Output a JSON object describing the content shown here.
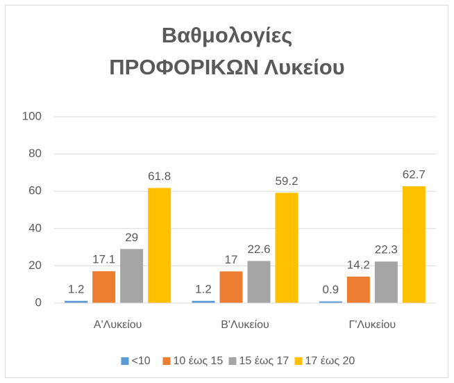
{
  "chart_data": {
    "type": "bar",
    "title": "Βαθμολογίες ΠΡΟΦΟΡΙΚΩΝ Λυκείου",
    "categories": [
      "Α'Λυκείου",
      "Β'Λυκείου",
      "Γ'Λυκείου"
    ],
    "series": [
      {
        "name": "<10",
        "color": "#5b9bd5",
        "values": [
          1.2,
          1.2,
          0.9
        ]
      },
      {
        "name": "10 έως 15",
        "color": "#ed7d31",
        "values": [
          17.1,
          17,
          14.2
        ]
      },
      {
        "name": "15 έως 17",
        "color": "#a5a5a5",
        "values": [
          29,
          22.6,
          22.3
        ]
      },
      {
        "name": "17 έως 20",
        "color": "#ffc000",
        "values": [
          61.8,
          59.2,
          62.7
        ]
      }
    ],
    "ylim": [
      0,
      100
    ],
    "yticks": [
      0,
      20,
      40,
      60,
      80,
      100
    ],
    "grid": true,
    "legend": "bottom"
  }
}
